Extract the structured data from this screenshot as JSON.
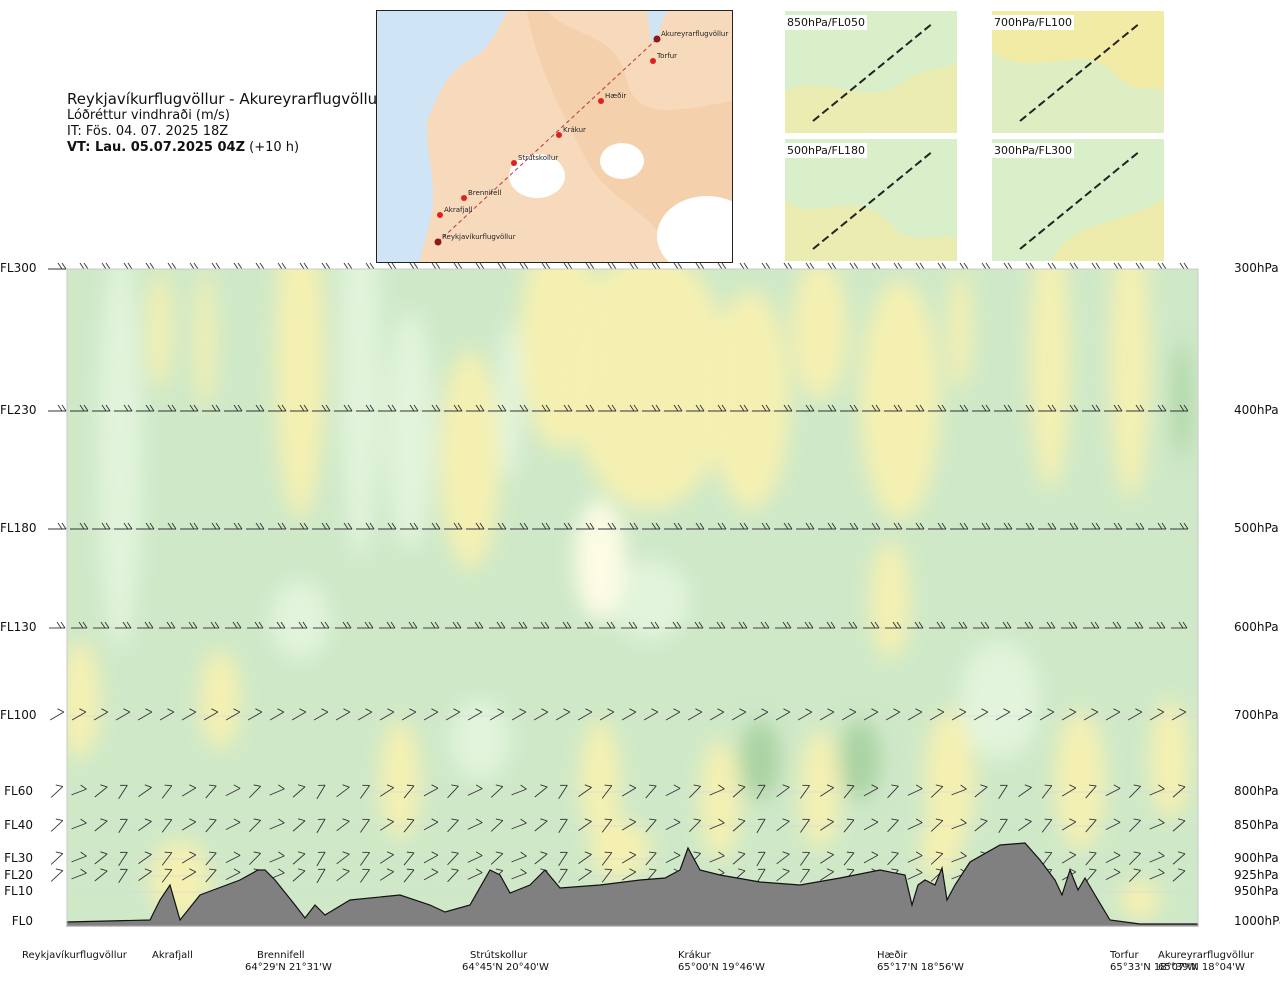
{
  "header": {
    "route": "Reykjavíkurflugvöllur - Akureyrarflugvöllur",
    "subtitle": "Lóðréttur vindhraði (m/s)",
    "it_line": "IT: Fös. 04. 07. 2025 18Z",
    "vt_bold": "VT: Lau. 05.07.2025 04Z",
    "vt_offset": "(+10 h)"
  },
  "map": {
    "points": [
      {
        "name": "Akureyrarflugvöllur"
      },
      {
        "name": "Torfur"
      },
      {
        "name": "Hæðir"
      },
      {
        "name": "Krákur"
      },
      {
        "name": "Strútskollur"
      },
      {
        "name": "Brennifell"
      },
      {
        "name": "Akrafjall"
      },
      {
        "name": "Reykjavíkurflugvöllur"
      }
    ]
  },
  "mini_maps": [
    {
      "label": "850hPa/FL050"
    },
    {
      "label": "700hPa/FL100"
    },
    {
      "label": "500hPa/FL180"
    },
    {
      "label": "300hPa/FL300"
    }
  ],
  "chart_data": {
    "type": "heatmap",
    "title": "Lóðréttur vindhraði (m/s)",
    "y_levels": [
      {
        "fl": "FL300",
        "hpa": "300hPa"
      },
      {
        "fl": "FL230",
        "hpa": "400hPa"
      },
      {
        "fl": "FL180",
        "hpa": "500hPa"
      },
      {
        "fl": "FL130",
        "hpa": "600hPa"
      },
      {
        "fl": "FL100",
        "hpa": "700hPa"
      },
      {
        "fl": "FL60",
        "hpa": "800hPa"
      },
      {
        "fl": "FL40",
        "hpa": "850hPa"
      },
      {
        "fl": "FL30",
        "hpa": "900hPa"
      },
      {
        "fl": "FL20",
        "hpa": "925hPa"
      },
      {
        "fl": "FL10",
        "hpa": "950hPa"
      },
      {
        "fl": "FL0",
        "hpa": "1000hPa"
      }
    ],
    "waypoints": [
      {
        "name": "Reykjavíkurflugvöllur",
        "coord": ""
      },
      {
        "name": "Akrafjall",
        "coord": ""
      },
      {
        "name": "Brennifell",
        "coord": "64°29'N 21°31'W"
      },
      {
        "name": "Strútskollur",
        "coord": "64°45'N 20°40'W"
      },
      {
        "name": "Krákur",
        "coord": "65°00'N 19°46'W"
      },
      {
        "name": "Hæðir",
        "coord": "65°17'N 18°56'W"
      },
      {
        "name": "Torfur",
        "coord": "65°33'N 18°07'W"
      },
      {
        "name": "Akureyrarflugvöllur",
        "coord": "65°39'N 18°04'W"
      }
    ],
    "colors": {
      "neutral": "#fffde6",
      "weak_up": "#e3f4dc",
      "up": "#cfe9c8",
      "strong_up": "#a8d1a0",
      "down": "#f7f0b0",
      "strong_down": "#eedf85",
      "terrain": "#808080"
    }
  }
}
